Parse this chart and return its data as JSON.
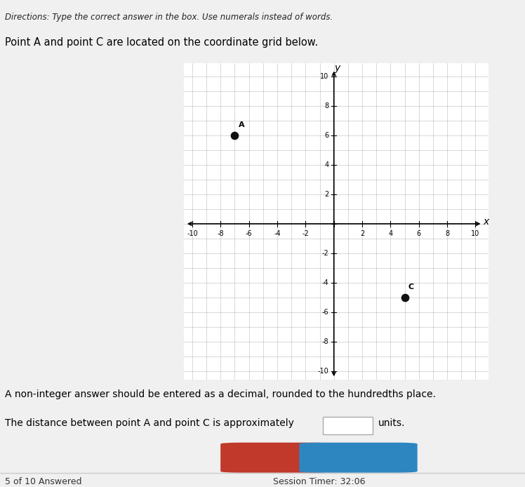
{
  "point_A": [
    -7,
    6
  ],
  "point_C": [
    5,
    -5
  ],
  "point_A_label": "A",
  "point_C_label": "C",
  "xlim": [
    -10,
    10
  ],
  "ylim": [
    -10,
    10
  ],
  "xlabel": "x",
  "ylabel": "y",
  "grid_color": "#bbbbbb",
  "axis_color": "#000000",
  "point_color": "#111111",
  "point_size": 55,
  "plot_bg": "#ffffff",
  "page_bg": "#f0f0f0",
  "header_text": "Directions: Type the correct answer in the box. Use numerals instead of words.",
  "title_text": "Point A and point C are located on the coordinate grid below.",
  "instruction_line1": "A non-integer answer should be entered as a decimal, rounded to the hundredths place.",
  "instruction_line2": "The distance between point A and point C is approximately",
  "instruction_units": "units.",
  "footer_left": "5 of 10 Answered",
  "footer_right": "Session Timer: 32:06",
  "reset_btn_color": "#c0392b",
  "submit_btn_color": "#2e86c1",
  "tick_label_size": 7,
  "axis_label_size": 10
}
